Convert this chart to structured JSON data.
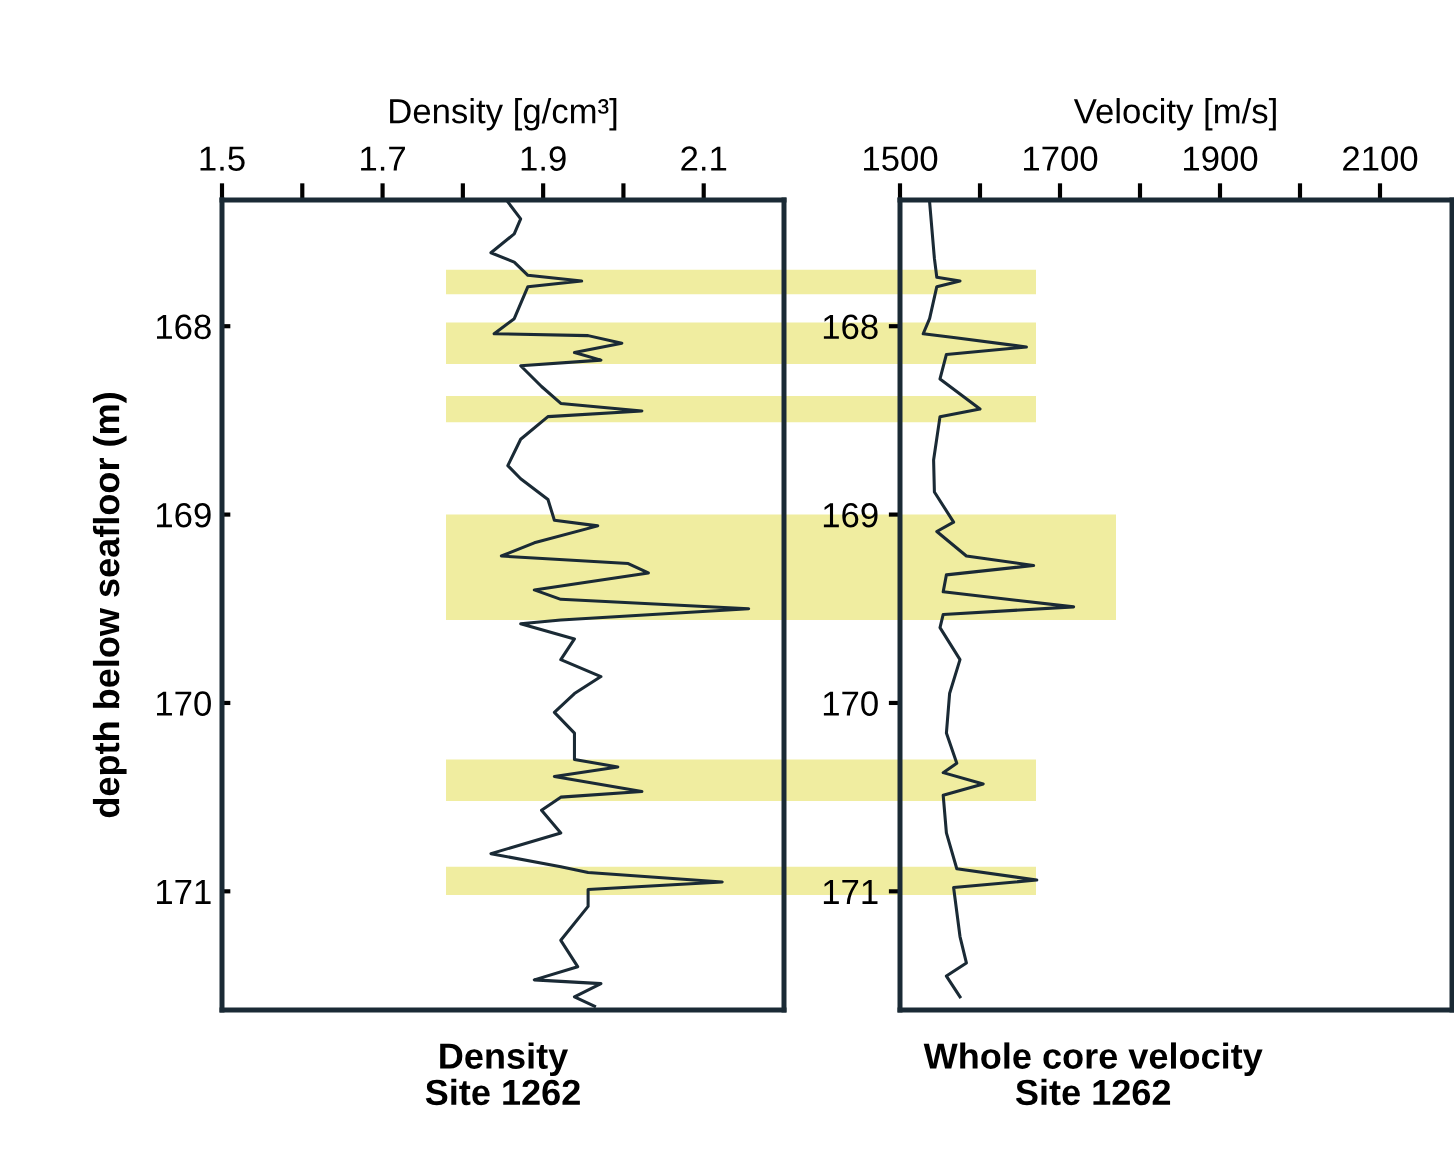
{
  "chart_data": [
    {
      "type": "line",
      "title": "Density\nSite 1262",
      "xlabel": "Density [g/cm³]",
      "ylabel": "depth below seafloor (m)",
      "xlim": [
        1.5,
        2.2
      ],
      "xticks": [
        1.5,
        {
          "value": 1.6,
          "label": null
        },
        1.7,
        {
          "value": 1.8,
          "label": null
        },
        1.9,
        {
          "value": 2.0,
          "label": null
        },
        2.1
      ],
      "ylim": [
        171.63,
        167.33
      ],
      "yticks": [
        168,
        169,
        170,
        171
      ],
      "tick_labels": "xy",
      "grid": false,
      "legend": false,
      "bands": [
        {
          "axis": "y",
          "from": 167.7,
          "to": 167.83,
          "color": "#f0eda0"
        },
        {
          "axis": "y",
          "from": 167.98,
          "to": 168.2,
          "color": "#f0eda0"
        },
        {
          "axis": "y",
          "from": 168.37,
          "to": 168.51,
          "color": "#f0eda0"
        },
        {
          "axis": "y",
          "from": 169.0,
          "to": 169.56,
          "color": "#f0eda0"
        },
        {
          "axis": "y",
          "from": 170.3,
          "to": 170.52,
          "color": "#f0eda0"
        },
        {
          "axis": "y",
          "from": 170.87,
          "to": 171.02,
          "color": "#f0eda0"
        }
      ],
      "series": [
        {
          "color": "#1a2a35",
          "x": [
            1.856,
            1.872,
            1.864,
            1.835,
            1.864,
            1.881,
            1.948,
            1.881,
            1.864,
            1.839,
            1.956,
            1.998,
            1.939,
            1.972,
            1.872,
            1.898,
            1.922,
            2.023,
            1.906,
            1.872,
            1.856,
            1.872,
            1.906,
            1.914,
            1.968,
            1.889,
            1.848,
            2.006,
            2.031,
            1.889,
            1.922,
            2.156,
            1.922,
            1.872,
            1.939,
            1.922,
            1.972,
            1.939,
            1.914,
            1.939,
            1.939,
            1.993,
            1.914,
            2.023,
            1.922,
            1.898,
            1.922,
            1.835,
            1.922,
            1.956,
            2.123,
            1.956,
            1.956,
            1.922,
            1.943,
            1.889,
            1.972,
            1.939,
            1.964
          ],
          "values": [
            167.34,
            167.43,
            167.51,
            167.61,
            167.66,
            167.73,
            167.76,
            167.79,
            167.96,
            168.04,
            168.05,
            168.09,
            168.14,
            168.18,
            168.21,
            168.32,
            168.41,
            168.45,
            168.48,
            168.6,
            168.74,
            168.81,
            168.92,
            169.03,
            169.06,
            169.15,
            169.22,
            169.26,
            169.31,
            169.4,
            169.45,
            169.5,
            169.56,
            169.58,
            169.66,
            169.77,
            169.86,
            169.95,
            170.05,
            170.16,
            170.3,
            170.34,
            170.39,
            170.47,
            170.5,
            170.57,
            170.69,
            170.8,
            170.87,
            170.9,
            170.95,
            170.99,
            171.08,
            171.26,
            171.4,
            171.47,
            171.49,
            171.56,
            171.61
          ]
        }
      ]
    },
    {
      "type": "line",
      "title": "Whole core velocity\nSite 1262",
      "xlabel": "Velocity [m/s]",
      "xlim": [
        1500,
        2190
      ],
      "xticks": [
        1500,
        {
          "value": 1600,
          "label": null
        },
        1700,
        {
          "value": 1800,
          "label": null
        },
        1900,
        {
          "value": 2000,
          "label": null
        },
        2100
      ],
      "ylim": [
        171.63,
        167.33
      ],
      "yticks": [
        168,
        169,
        170,
        171
      ],
      "grid": false,
      "legend": false,
      "series": [
        {
          "color": "#1a2a35",
          "x": [
            1537,
            1543,
            1546,
            1575,
            1546,
            1537,
            1529,
            1567,
            1658,
            1558,
            1550,
            1600,
            1550,
            1542,
            1543,
            1567,
            1546,
            1583,
            1667,
            1558,
            1554,
            1717,
            1554,
            1550,
            1575,
            1562,
            1558,
            1571,
            1554,
            1604,
            1554,
            1558,
            1571,
            1671,
            1567,
            1575,
            1583,
            1558,
            1575
          ],
          "values": [
            167.34,
            167.64,
            167.74,
            167.76,
            167.79,
            167.96,
            168.04,
            168.06,
            168.11,
            168.15,
            168.28,
            168.44,
            168.48,
            168.71,
            168.88,
            169.04,
            169.09,
            169.22,
            169.27,
            169.32,
            169.41,
            169.49,
            169.53,
            169.6,
            169.77,
            169.95,
            170.16,
            170.32,
            170.37,
            170.43,
            170.49,
            170.69,
            170.88,
            170.94,
            170.98,
            171.24,
            171.38,
            171.45,
            171.56
          ]
        }
      ]
    }
  ]
}
